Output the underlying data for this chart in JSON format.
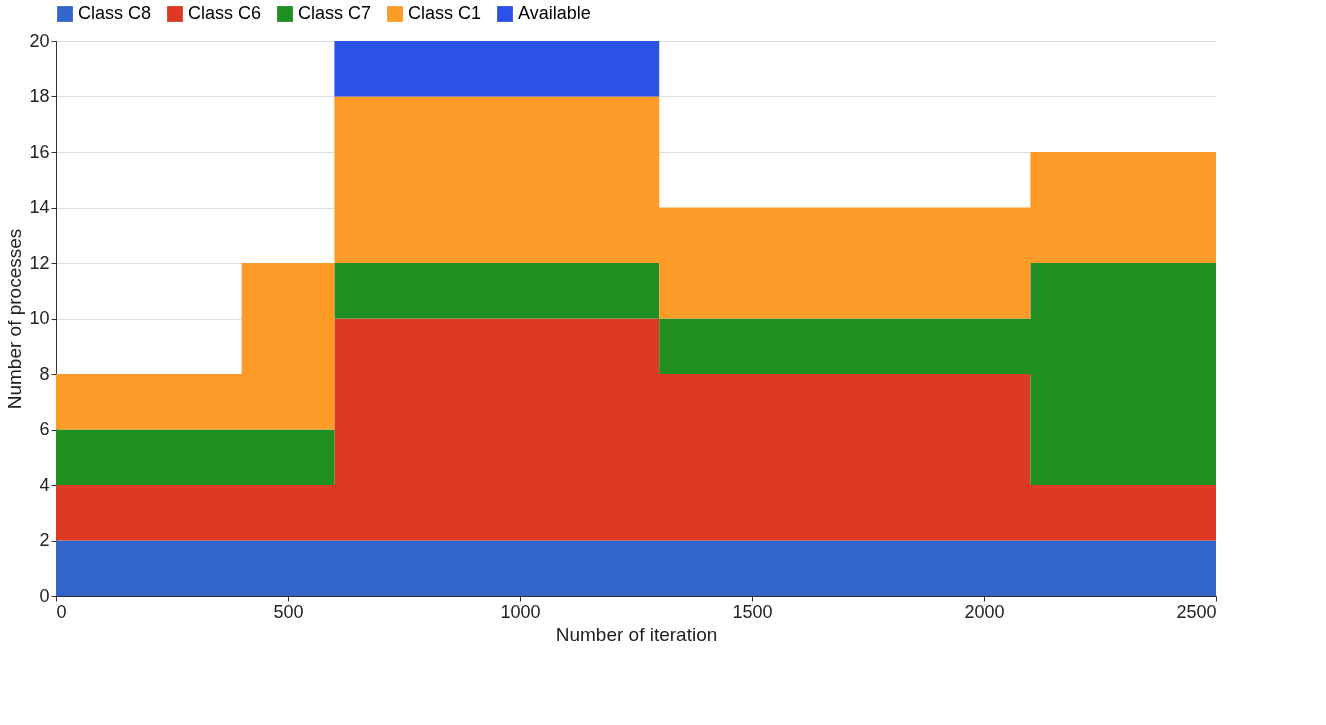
{
  "chart_data": {
    "type": "area",
    "stacked": true,
    "xlabel": "Number of iteration",
    "ylabel": "Number of processes",
    "x": [
      0,
      400,
      400,
      600,
      600,
      1300,
      1300,
      2100,
      2100,
      2500
    ],
    "series": [
      {
        "name": "Class C8",
        "color": "#3366cc",
        "values": [
          2,
          2,
          2,
          2,
          2,
          2,
          2,
          2,
          2,
          2
        ]
      },
      {
        "name": "Class C6",
        "color": "#dc3a22",
        "values": [
          2,
          2,
          2,
          2,
          8,
          8,
          6,
          6,
          2,
          2
        ]
      },
      {
        "name": "Class C7",
        "color": "#1f8f22",
        "values": [
          2,
          2,
          2,
          2,
          2,
          2,
          2,
          2,
          8,
          8
        ]
      },
      {
        "name": "Class C1",
        "color": "#fd9a28",
        "values": [
          2,
          2,
          6,
          6,
          6,
          6,
          4,
          4,
          4,
          4
        ]
      },
      {
        "name": "Available",
        "color": "#2a52e6",
        "values": [
          null,
          null,
          null,
          null,
          2,
          2,
          null,
          null,
          null,
          null
        ]
      }
    ],
    "xlim": [
      0,
      2500
    ],
    "xticks": [
      0,
      500,
      1000,
      1500,
      2000,
      2500
    ],
    "ylim": [
      0,
      20
    ],
    "yticks": [
      0,
      2,
      4,
      6,
      8,
      10,
      12,
      14,
      16,
      18,
      20
    ],
    "grid": "y",
    "legend": "top"
  }
}
